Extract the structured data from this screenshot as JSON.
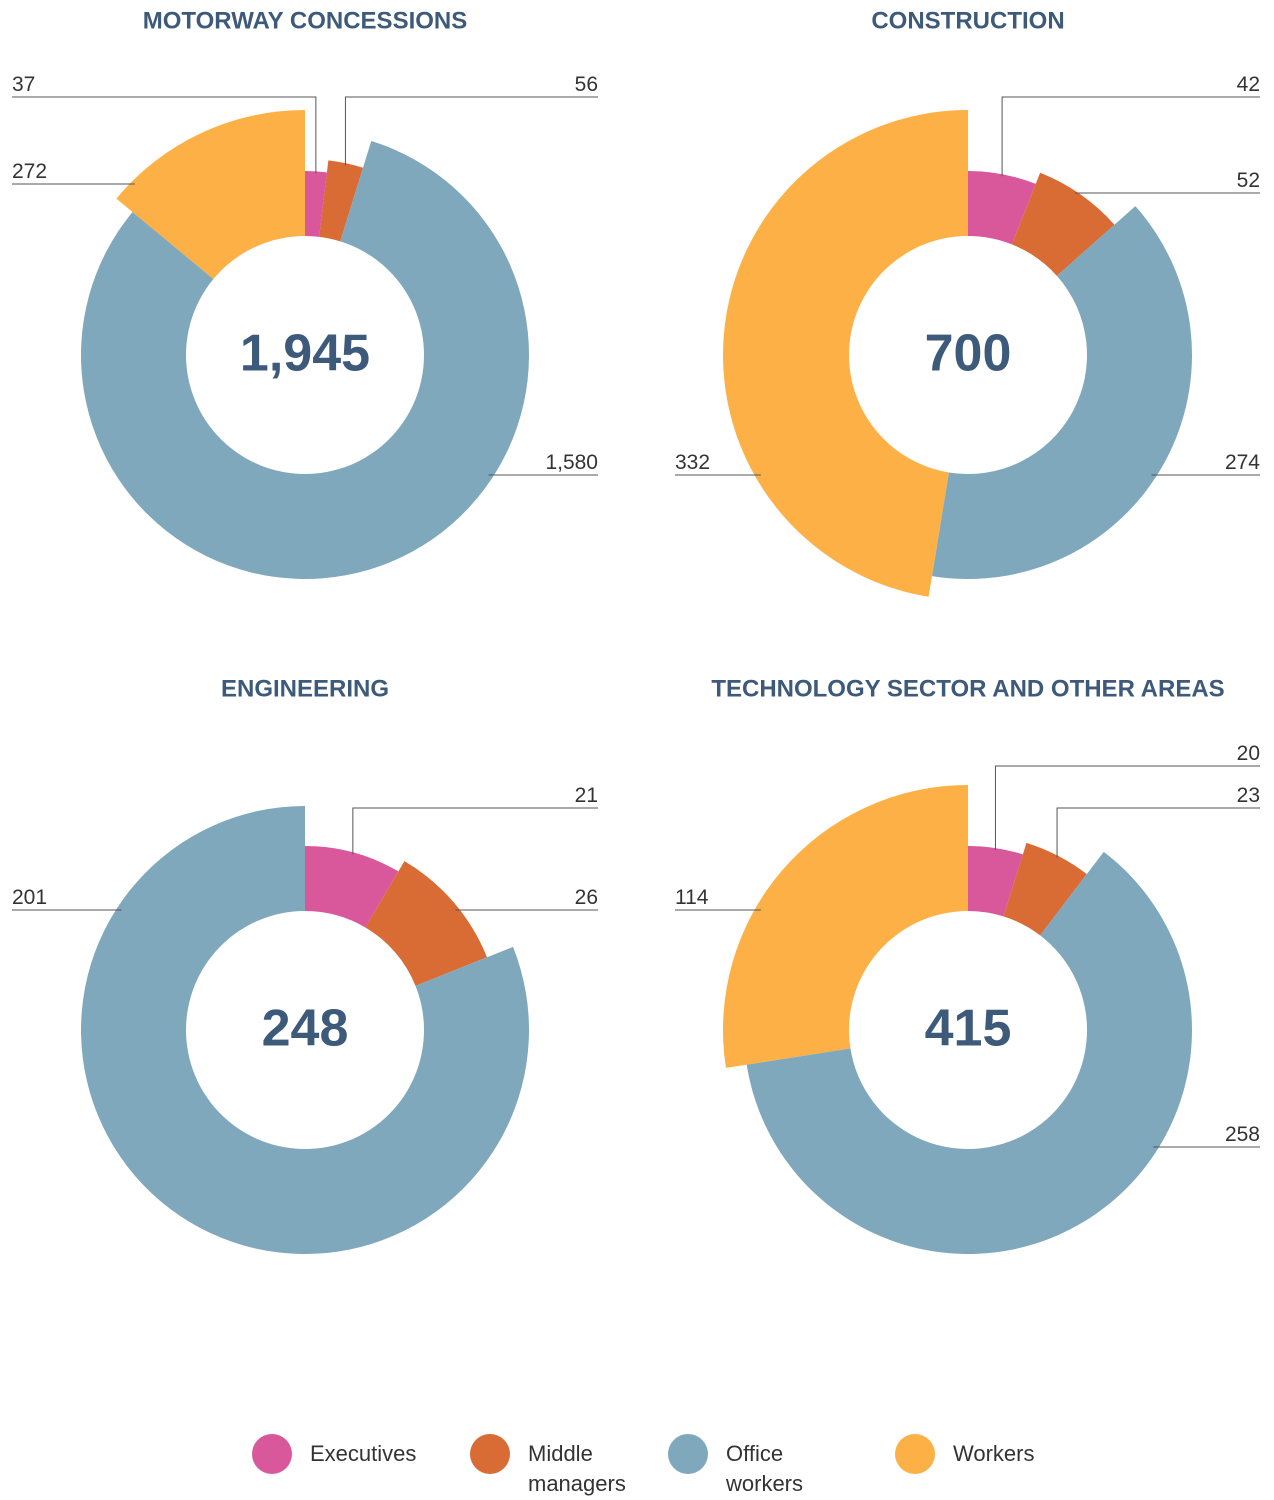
{
  "legend": {
    "categories": [
      "Executives",
      "Middle managers",
      "Office workers",
      "Workers"
    ],
    "colors": [
      "#d9579b",
      "#d96b35",
      "#7fa8bd",
      "#fdb045"
    ]
  },
  "chart_data": [
    {
      "type": "pie",
      "title": "MOTORWAY CONCESSIONS",
      "total": {
        "value": 1945,
        "label": "1,945"
      },
      "values": [
        37,
        56,
        1580,
        272
      ],
      "value_labels": [
        "37",
        "56",
        "1,580",
        "272"
      ]
    },
    {
      "type": "pie",
      "title": "CONSTRUCTION",
      "total": 700,
      "values": [
        42,
        52,
        274,
        332
      ]
    },
    {
      "type": "pie",
      "title": "ENGINEERING",
      "total": 248,
      "values": [
        21,
        26,
        201
      ]
    },
    {
      "type": "pie",
      "title": "TECHNOLOGY SECTOR AND OTHER AREAS",
      "total": 415,
      "values": [
        20,
        23,
        258,
        114
      ]
    }
  ]
}
